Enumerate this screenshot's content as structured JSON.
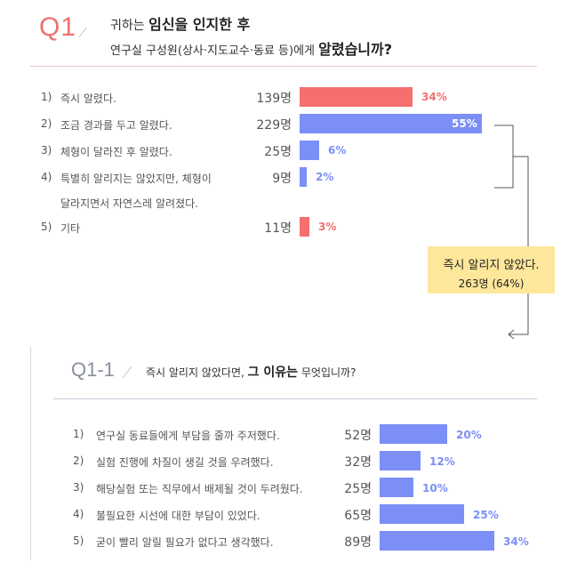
{
  "q1": {
    "label": "Q1",
    "question_prefix": "귀하는",
    "question_bold": "임신을 인지한 후",
    "question_line2_prefix": "연구실 구성원(상사·지도교수·동료  등)에게",
    "question_line2_bold": "알렸습니까?"
  },
  "q1_items": [
    {
      "num": "1)",
      "text": "즉시 알렸다.",
      "count": "139명",
      "pct": "34%",
      "color": "#f56f6f",
      "inside": false
    },
    {
      "num": "2)",
      "text": "조금 경과를 두고 알렸다.",
      "count": "229명",
      "pct": "55%",
      "color": "#7b8ff7",
      "inside": true
    },
    {
      "num": "3)",
      "text": "체형이 달라진 후 알렸다.",
      "count": "25명",
      "pct": "6%",
      "color": "#7b8ff7",
      "inside": false
    },
    {
      "num": "4)",
      "text": "특별히 알리지는 않았지만, 체형이",
      "text2": "달라지면서 자연스레 알려졌다.",
      "count": "9명",
      "pct": "2%",
      "color": "#7b8ff7",
      "inside": false
    },
    {
      "num": "5)",
      "text": "기타",
      "count": "11명",
      "pct": "3%",
      "color": "#f56f6f",
      "inside": false
    }
  ],
  "callout": {
    "line1": "즉시 알리지 않았다.",
    "line2": "263명 (64%)"
  },
  "q2": {
    "label": "Q1-1",
    "question_prefix": "즉시 알리지 않았다면,",
    "question_bold": "그 이유는",
    "question_suffix": "무엇입니까?"
  },
  "q2_items": [
    {
      "num": "1)",
      "text": "연구실 동료들에게 부담을 줄까 주저했다.",
      "count": "52명",
      "pct": "20%"
    },
    {
      "num": "2)",
      "text": "실험 진행에 차질이 생길 것을 우려했다.",
      "count": "32명",
      "pct": "12%"
    },
    {
      "num": "3)",
      "text": "해당실험 또는 직무에서 배제될 것이 두려웠다.",
      "count": "25명",
      "pct": "10%"
    },
    {
      "num": "4)",
      "text": "불필요한 시선에 대한 부담이 있었다.",
      "count": "65명",
      "pct": "25%"
    },
    {
      "num": "5)",
      "text": "굳이 빨리 알릴 필요가 없다고 생각했다.",
      "count": "89명",
      "pct": "34%"
    }
  ],
  "chart_data": [
    {
      "type": "bar",
      "title": "Q1 귀하는 임신을 인지한 후 연구실 구성원(상사·지도교수·동료 등)에게 알렸습니까?",
      "categories": [
        "즉시 알렸다.",
        "조금 경과를 두고 알렸다.",
        "체형이 달라진 후 알렸다.",
        "특별히 알리지는 않았지만, 체형이 달라지면서 자연스레 알려졌다.",
        "기타"
      ],
      "counts": [
        139,
        229,
        25,
        9,
        11
      ],
      "values": [
        34,
        55,
        6,
        2,
        3
      ],
      "unit": "%",
      "colors": [
        "#f56f6f",
        "#7b8ff7",
        "#7b8ff7",
        "#7b8ff7",
        "#f56f6f"
      ]
    },
    {
      "type": "bar",
      "title": "Q1-1 즉시 알리지 않았다면, 그 이유는 무엇입니까?",
      "categories": [
        "연구실 동료들에게 부담을 줄까 주저했다.",
        "실험 진행에 차질이 생길 것을 우려했다.",
        "해당실험 또는 직무에서 배제될 것이 두려웠다.",
        "불필요한 시선에 대한 부담이 있었다.",
        "굳이 빨리 알릴 필요가 없다고 생각했다."
      ],
      "counts": [
        52,
        32,
        25,
        65,
        89
      ],
      "values": [
        20,
        12,
        10,
        25,
        34
      ],
      "unit": "%",
      "colors": [
        "#7b8ff7",
        "#7b8ff7",
        "#7b8ff7",
        "#7b8ff7",
        "#7b8ff7"
      ]
    }
  ]
}
